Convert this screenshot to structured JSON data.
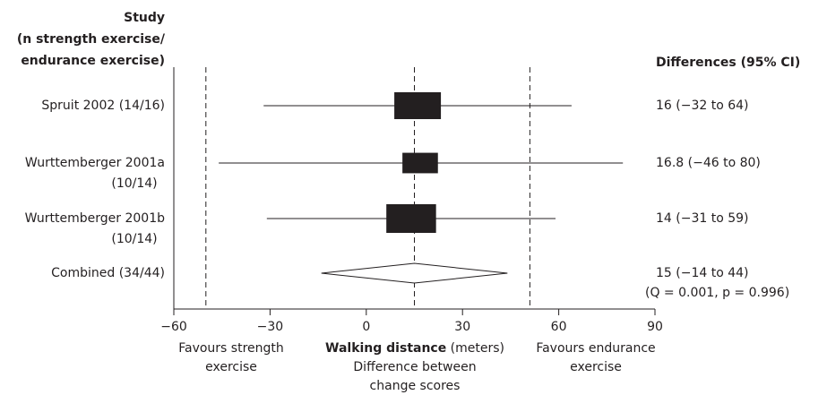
{
  "chart_data": {
    "type": "forest",
    "study_header": [
      "Study",
      "(n strength exercise/",
      "endurance exercise)"
    ],
    "estimate_header": "Differences (95% CI)",
    "studies": [
      {
        "label": [
          "Spruit 2002 (14/16)"
        ],
        "estimate": 16,
        "ci": [
          -32,
          64
        ],
        "estimate_label": "16 (−32 to 64)"
      },
      {
        "label": [
          "Wurttemberger 2001a",
          "(10/14)"
        ],
        "estimate": 16.8,
        "ci": [
          -46,
          80
        ],
        "estimate_label": "16.8 (−46 to 80)"
      },
      {
        "label": [
          "Wurttemberger 2001b",
          "(10/14)"
        ],
        "estimate": 14,
        "ci": [
          -31,
          59
        ],
        "estimate_label": "14 (−31 to 59)"
      }
    ],
    "combined": {
      "label": [
        "Combined (34/44)"
      ],
      "estimate": 15,
      "ci": [
        -14,
        44
      ],
      "estimate_label": "15 (−14 to 44)",
      "note": "(Q = 0.001, p = 0.996)"
    },
    "xlim": [
      -60,
      90
    ],
    "xticks": [
      {
        "value": -60,
        "label": "−60"
      },
      {
        "value": -30,
        "label": "−30"
      },
      0,
      30,
      60,
      90
    ],
    "reference_lines": [
      -50,
      51
    ],
    "xlabel": {
      "bold": "Walking distance",
      "rest": "(meters)",
      "lines": [
        "Difference between",
        "change scores"
      ]
    },
    "left_note": [
      "Favours strength",
      "exercise"
    ],
    "right_note": [
      "Favours endurance",
      "exercise"
    ]
  }
}
